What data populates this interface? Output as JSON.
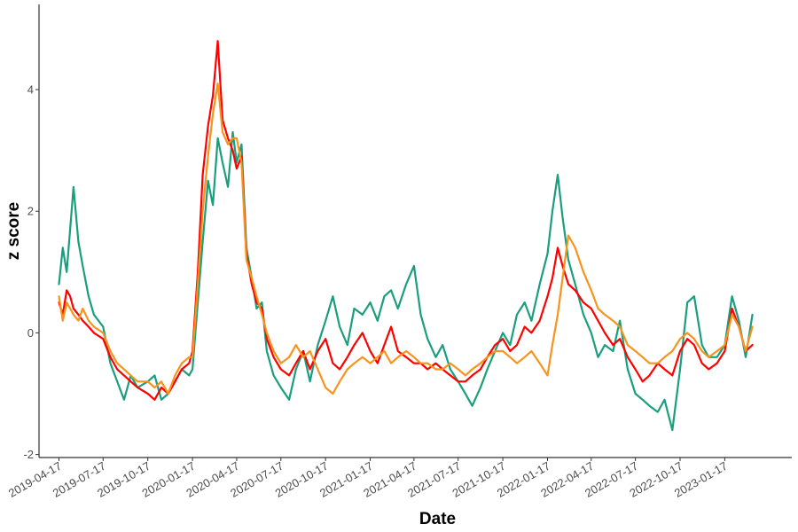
{
  "chart_data": {
    "type": "line",
    "title": "",
    "xlabel": "Date",
    "ylabel": "z score",
    "x_tick_labels": [
      "2019-04-17",
      "2019-07-17",
      "2019-10-17",
      "2020-01-17",
      "2020-04-17",
      "2020-07-17",
      "2020-10-17",
      "2021-01-17",
      "2021-04-17",
      "2021-07-17",
      "2021-10-17",
      "2022-01-17",
      "2022-04-17",
      "2022-07-17",
      "2022-10-17",
      "2023-01-17"
    ],
    "y_ticks": [
      -2,
      0,
      2,
      4
    ],
    "xlim": [
      "2019-03-07",
      "2023-06-04"
    ],
    "ylim": [
      -2.05,
      5.4
    ],
    "grid": false,
    "legend": "none",
    "series": [
      {
        "color": "#1a9e7e",
        "x": [
          "2019-04-17",
          "2019-04-25",
          "2019-05-03",
          "2019-05-10",
          "2019-05-17",
          "2019-05-27",
          "2019-06-05",
          "2019-06-17",
          "2019-06-28",
          "2019-07-17",
          "2019-08-01",
          "2019-08-15",
          "2019-08-29",
          "2019-09-12",
          "2019-09-26",
          "2019-10-17",
          "2019-10-31",
          "2019-11-14",
          "2019-11-28",
          "2019-12-12",
          "2019-12-26",
          "2020-01-10",
          "2020-01-17",
          "2020-01-28",
          "2020-02-07",
          "2020-02-18",
          "2020-02-28",
          "2020-03-09",
          "2020-03-19",
          "2020-03-30",
          "2020-04-09",
          "2020-04-17",
          "2020-04-27",
          "2020-05-07",
          "2020-05-18",
          "2020-05-28",
          "2020-06-08",
          "2020-06-18",
          "2020-07-02",
          "2020-07-17",
          "2020-08-03",
          "2020-08-17",
          "2020-09-01",
          "2020-09-15",
          "2020-10-01",
          "2020-10-17",
          "2020-11-01",
          "2020-11-15",
          "2020-12-01",
          "2020-12-15",
          "2021-01-01",
          "2021-01-17",
          "2021-02-01",
          "2021-02-15",
          "2021-03-01",
          "2021-03-15",
          "2021-04-01",
          "2021-04-17",
          "2021-05-01",
          "2021-05-15",
          "2021-06-01",
          "2021-06-15",
          "2021-07-01",
          "2021-07-17",
          "2021-08-01",
          "2021-08-15",
          "2021-09-01",
          "2021-09-15",
          "2021-10-01",
          "2021-10-17",
          "2021-11-01",
          "2021-11-15",
          "2021-12-01",
          "2021-12-15",
          "2022-01-01",
          "2022-01-17",
          "2022-01-27",
          "2022-02-07",
          "2022-02-17",
          "2022-03-01",
          "2022-03-15",
          "2022-04-01",
          "2022-04-17",
          "2022-05-01",
          "2022-05-15",
          "2022-06-01",
          "2022-06-15",
          "2022-07-01",
          "2022-07-17",
          "2022-08-01",
          "2022-08-15",
          "2022-09-01",
          "2022-09-15",
          "2022-10-01",
          "2022-10-17",
          "2022-11-01",
          "2022-11-15",
          "2022-12-01",
          "2022-12-15",
          "2023-01-01",
          "2023-01-17",
          "2023-02-01",
          "2023-02-15",
          "2023-03-01",
          "2023-03-15"
        ],
        "values": [
          0.8,
          1.4,
          1.0,
          1.7,
          2.4,
          1.5,
          1.1,
          0.6,
          0.3,
          0.1,
          -0.5,
          -0.8,
          -1.1,
          -0.7,
          -0.9,
          -0.8,
          -0.7,
          -1.1,
          -1.0,
          -0.8,
          -0.6,
          -0.7,
          -0.6,
          0.5,
          1.5,
          2.5,
          2.1,
          3.2,
          2.8,
          2.4,
          3.3,
          2.8,
          3.1,
          1.4,
          0.9,
          0.4,
          0.5,
          -0.3,
          -0.7,
          -0.9,
          -1.1,
          -0.6,
          -0.3,
          -0.8,
          -0.2,
          0.2,
          0.6,
          0.1,
          -0.2,
          0.4,
          0.3,
          0.5,
          0.2,
          0.6,
          0.7,
          0.4,
          0.8,
          1.1,
          0.3,
          -0.1,
          -0.4,
          -0.2,
          -0.6,
          -0.8,
          -1.0,
          -1.2,
          -0.9,
          -0.6,
          -0.3,
          0.0,
          -0.2,
          0.3,
          0.5,
          0.2,
          0.8,
          1.3,
          2.0,
          2.6,
          1.9,
          1.2,
          0.8,
          0.3,
          0.0,
          -0.4,
          -0.2,
          -0.3,
          0.2,
          -0.6,
          -1.0,
          -1.1,
          -1.2,
          -1.3,
          -1.1,
          -1.6,
          -0.6,
          0.5,
          0.6,
          -0.2,
          -0.4,
          -0.4,
          -0.2,
          0.6,
          0.2,
          -0.4,
          0.3
        ]
      },
      {
        "color": "#ff0000",
        "x": [
          "2019-04-17",
          "2019-04-25",
          "2019-05-03",
          "2019-05-10",
          "2019-05-17",
          "2019-05-27",
          "2019-06-05",
          "2019-06-17",
          "2019-06-28",
          "2019-07-17",
          "2019-08-01",
          "2019-08-15",
          "2019-08-29",
          "2019-09-12",
          "2019-09-26",
          "2019-10-17",
          "2019-10-31",
          "2019-11-14",
          "2019-11-28",
          "2019-12-12",
          "2019-12-26",
          "2020-01-10",
          "2020-01-17",
          "2020-01-28",
          "2020-02-07",
          "2020-02-18",
          "2020-02-28",
          "2020-03-09",
          "2020-03-19",
          "2020-03-30",
          "2020-04-09",
          "2020-04-17",
          "2020-04-27",
          "2020-05-07",
          "2020-05-18",
          "2020-05-28",
          "2020-06-08",
          "2020-06-18",
          "2020-07-02",
          "2020-07-17",
          "2020-08-03",
          "2020-08-17",
          "2020-09-01",
          "2020-09-15",
          "2020-10-01",
          "2020-10-17",
          "2020-11-01",
          "2020-11-15",
          "2020-12-01",
          "2020-12-15",
          "2021-01-01",
          "2021-01-17",
          "2021-02-01",
          "2021-02-15",
          "2021-03-01",
          "2021-03-15",
          "2021-04-01",
          "2021-04-17",
          "2021-05-01",
          "2021-05-15",
          "2021-06-01",
          "2021-06-15",
          "2021-07-01",
          "2021-07-17",
          "2021-08-01",
          "2021-08-15",
          "2021-09-01",
          "2021-09-15",
          "2021-10-01",
          "2021-10-17",
          "2021-11-01",
          "2021-11-15",
          "2021-12-01",
          "2021-12-15",
          "2022-01-01",
          "2022-01-17",
          "2022-01-27",
          "2022-02-07",
          "2022-02-17",
          "2022-03-01",
          "2022-03-15",
          "2022-04-01",
          "2022-04-17",
          "2022-05-01",
          "2022-05-15",
          "2022-06-01",
          "2022-06-15",
          "2022-07-01",
          "2022-07-17",
          "2022-08-01",
          "2022-08-15",
          "2022-09-01",
          "2022-09-15",
          "2022-10-01",
          "2022-10-17",
          "2022-11-01",
          "2022-11-15",
          "2022-12-01",
          "2022-12-15",
          "2023-01-01",
          "2023-01-17",
          "2023-02-01",
          "2023-02-15",
          "2023-03-01",
          "2023-03-15"
        ],
        "values": [
          0.5,
          0.3,
          0.7,
          0.6,
          0.4,
          0.3,
          0.2,
          0.1,
          0.0,
          -0.1,
          -0.4,
          -0.6,
          -0.7,
          -0.8,
          -0.9,
          -1.0,
          -1.1,
          -0.9,
          -1.0,
          -0.8,
          -0.6,
          -0.5,
          -0.3,
          1.0,
          2.6,
          3.4,
          3.9,
          4.8,
          3.5,
          3.2,
          3.0,
          2.7,
          2.9,
          1.3,
          0.8,
          0.5,
          0.4,
          -0.1,
          -0.4,
          -0.6,
          -0.7,
          -0.5,
          -0.3,
          -0.6,
          -0.3,
          -0.1,
          -0.5,
          -0.6,
          -0.4,
          -0.2,
          0.0,
          -0.3,
          -0.5,
          -0.2,
          0.1,
          -0.3,
          -0.4,
          -0.5,
          -0.5,
          -0.6,
          -0.5,
          -0.6,
          -0.7,
          -0.8,
          -0.8,
          -0.7,
          -0.6,
          -0.4,
          -0.2,
          -0.1,
          -0.3,
          -0.2,
          0.1,
          0.0,
          0.2,
          0.6,
          0.9,
          1.4,
          1.1,
          0.8,
          0.7,
          0.5,
          0.4,
          0.2,
          0.0,
          -0.2,
          -0.1,
          -0.4,
          -0.6,
          -0.8,
          -0.7,
          -0.5,
          -0.6,
          -0.7,
          -0.3,
          -0.1,
          -0.2,
          -0.5,
          -0.6,
          -0.5,
          -0.3,
          0.4,
          0.1,
          -0.3,
          -0.2
        ]
      },
      {
        "color": "#f7941d",
        "x": [
          "2019-04-17",
          "2019-04-25",
          "2019-05-03",
          "2019-05-10",
          "2019-05-17",
          "2019-05-27",
          "2019-06-05",
          "2019-06-17",
          "2019-06-28",
          "2019-07-17",
          "2019-08-01",
          "2019-08-15",
          "2019-08-29",
          "2019-09-12",
          "2019-09-26",
          "2019-10-17",
          "2019-10-31",
          "2019-11-14",
          "2019-11-28",
          "2019-12-12",
          "2019-12-26",
          "2020-01-10",
          "2020-01-17",
          "2020-01-28",
          "2020-02-07",
          "2020-02-18",
          "2020-02-28",
          "2020-03-09",
          "2020-03-19",
          "2020-03-30",
          "2020-04-09",
          "2020-04-17",
          "2020-04-27",
          "2020-05-07",
          "2020-05-18",
          "2020-05-28",
          "2020-06-08",
          "2020-06-18",
          "2020-07-02",
          "2020-07-17",
          "2020-08-03",
          "2020-08-17",
          "2020-09-01",
          "2020-09-15",
          "2020-10-01",
          "2020-10-17",
          "2020-11-01",
          "2020-11-15",
          "2020-12-01",
          "2020-12-15",
          "2021-01-01",
          "2021-01-17",
          "2021-02-01",
          "2021-02-15",
          "2021-03-01",
          "2021-03-15",
          "2021-04-01",
          "2021-04-17",
          "2021-05-01",
          "2021-05-15",
          "2021-06-01",
          "2021-06-15",
          "2021-07-01",
          "2021-07-17",
          "2021-08-01",
          "2021-08-15",
          "2021-09-01",
          "2021-09-15",
          "2021-10-01",
          "2021-10-17",
          "2021-11-01",
          "2021-11-15",
          "2021-12-01",
          "2021-12-15",
          "2022-01-01",
          "2022-01-17",
          "2022-01-27",
          "2022-02-07",
          "2022-02-17",
          "2022-03-01",
          "2022-03-15",
          "2022-04-01",
          "2022-04-17",
          "2022-05-01",
          "2022-05-15",
          "2022-06-01",
          "2022-06-15",
          "2022-07-01",
          "2022-07-17",
          "2022-08-01",
          "2022-08-15",
          "2022-09-01",
          "2022-09-15",
          "2022-10-01",
          "2022-10-17",
          "2022-11-01",
          "2022-11-15",
          "2022-12-01",
          "2022-12-15",
          "2023-01-01",
          "2023-01-17",
          "2023-02-01",
          "2023-02-15",
          "2023-03-01",
          "2023-03-15"
        ],
        "values": [
          0.6,
          0.2,
          0.5,
          0.4,
          0.3,
          0.2,
          0.4,
          0.2,
          0.1,
          0.0,
          -0.3,
          -0.5,
          -0.6,
          -0.7,
          -0.8,
          -0.8,
          -0.9,
          -0.8,
          -1.0,
          -0.7,
          -0.5,
          -0.4,
          -0.4,
          0.8,
          2.0,
          2.9,
          3.6,
          4.1,
          3.3,
          3.1,
          3.2,
          3.2,
          2.8,
          1.2,
          0.9,
          0.6,
          0.3,
          0.0,
          -0.3,
          -0.5,
          -0.4,
          -0.2,
          -0.4,
          -0.3,
          -0.6,
          -0.9,
          -1.0,
          -0.8,
          -0.6,
          -0.5,
          -0.4,
          -0.5,
          -0.4,
          -0.3,
          -0.5,
          -0.4,
          -0.3,
          -0.4,
          -0.5,
          -0.5,
          -0.6,
          -0.6,
          -0.5,
          -0.6,
          -0.7,
          -0.6,
          -0.5,
          -0.4,
          -0.3,
          -0.3,
          -0.4,
          -0.5,
          -0.4,
          -0.3,
          -0.5,
          -0.7,
          -0.2,
          0.3,
          0.9,
          1.6,
          1.4,
          1.0,
          0.7,
          0.4,
          0.3,
          0.2,
          0.1,
          -0.2,
          -0.3,
          -0.4,
          -0.5,
          -0.5,
          -0.4,
          -0.3,
          -0.1,
          0.0,
          -0.1,
          -0.3,
          -0.4,
          -0.3,
          -0.2,
          0.3,
          0.1,
          -0.3,
          0.1
        ]
      }
    ]
  }
}
